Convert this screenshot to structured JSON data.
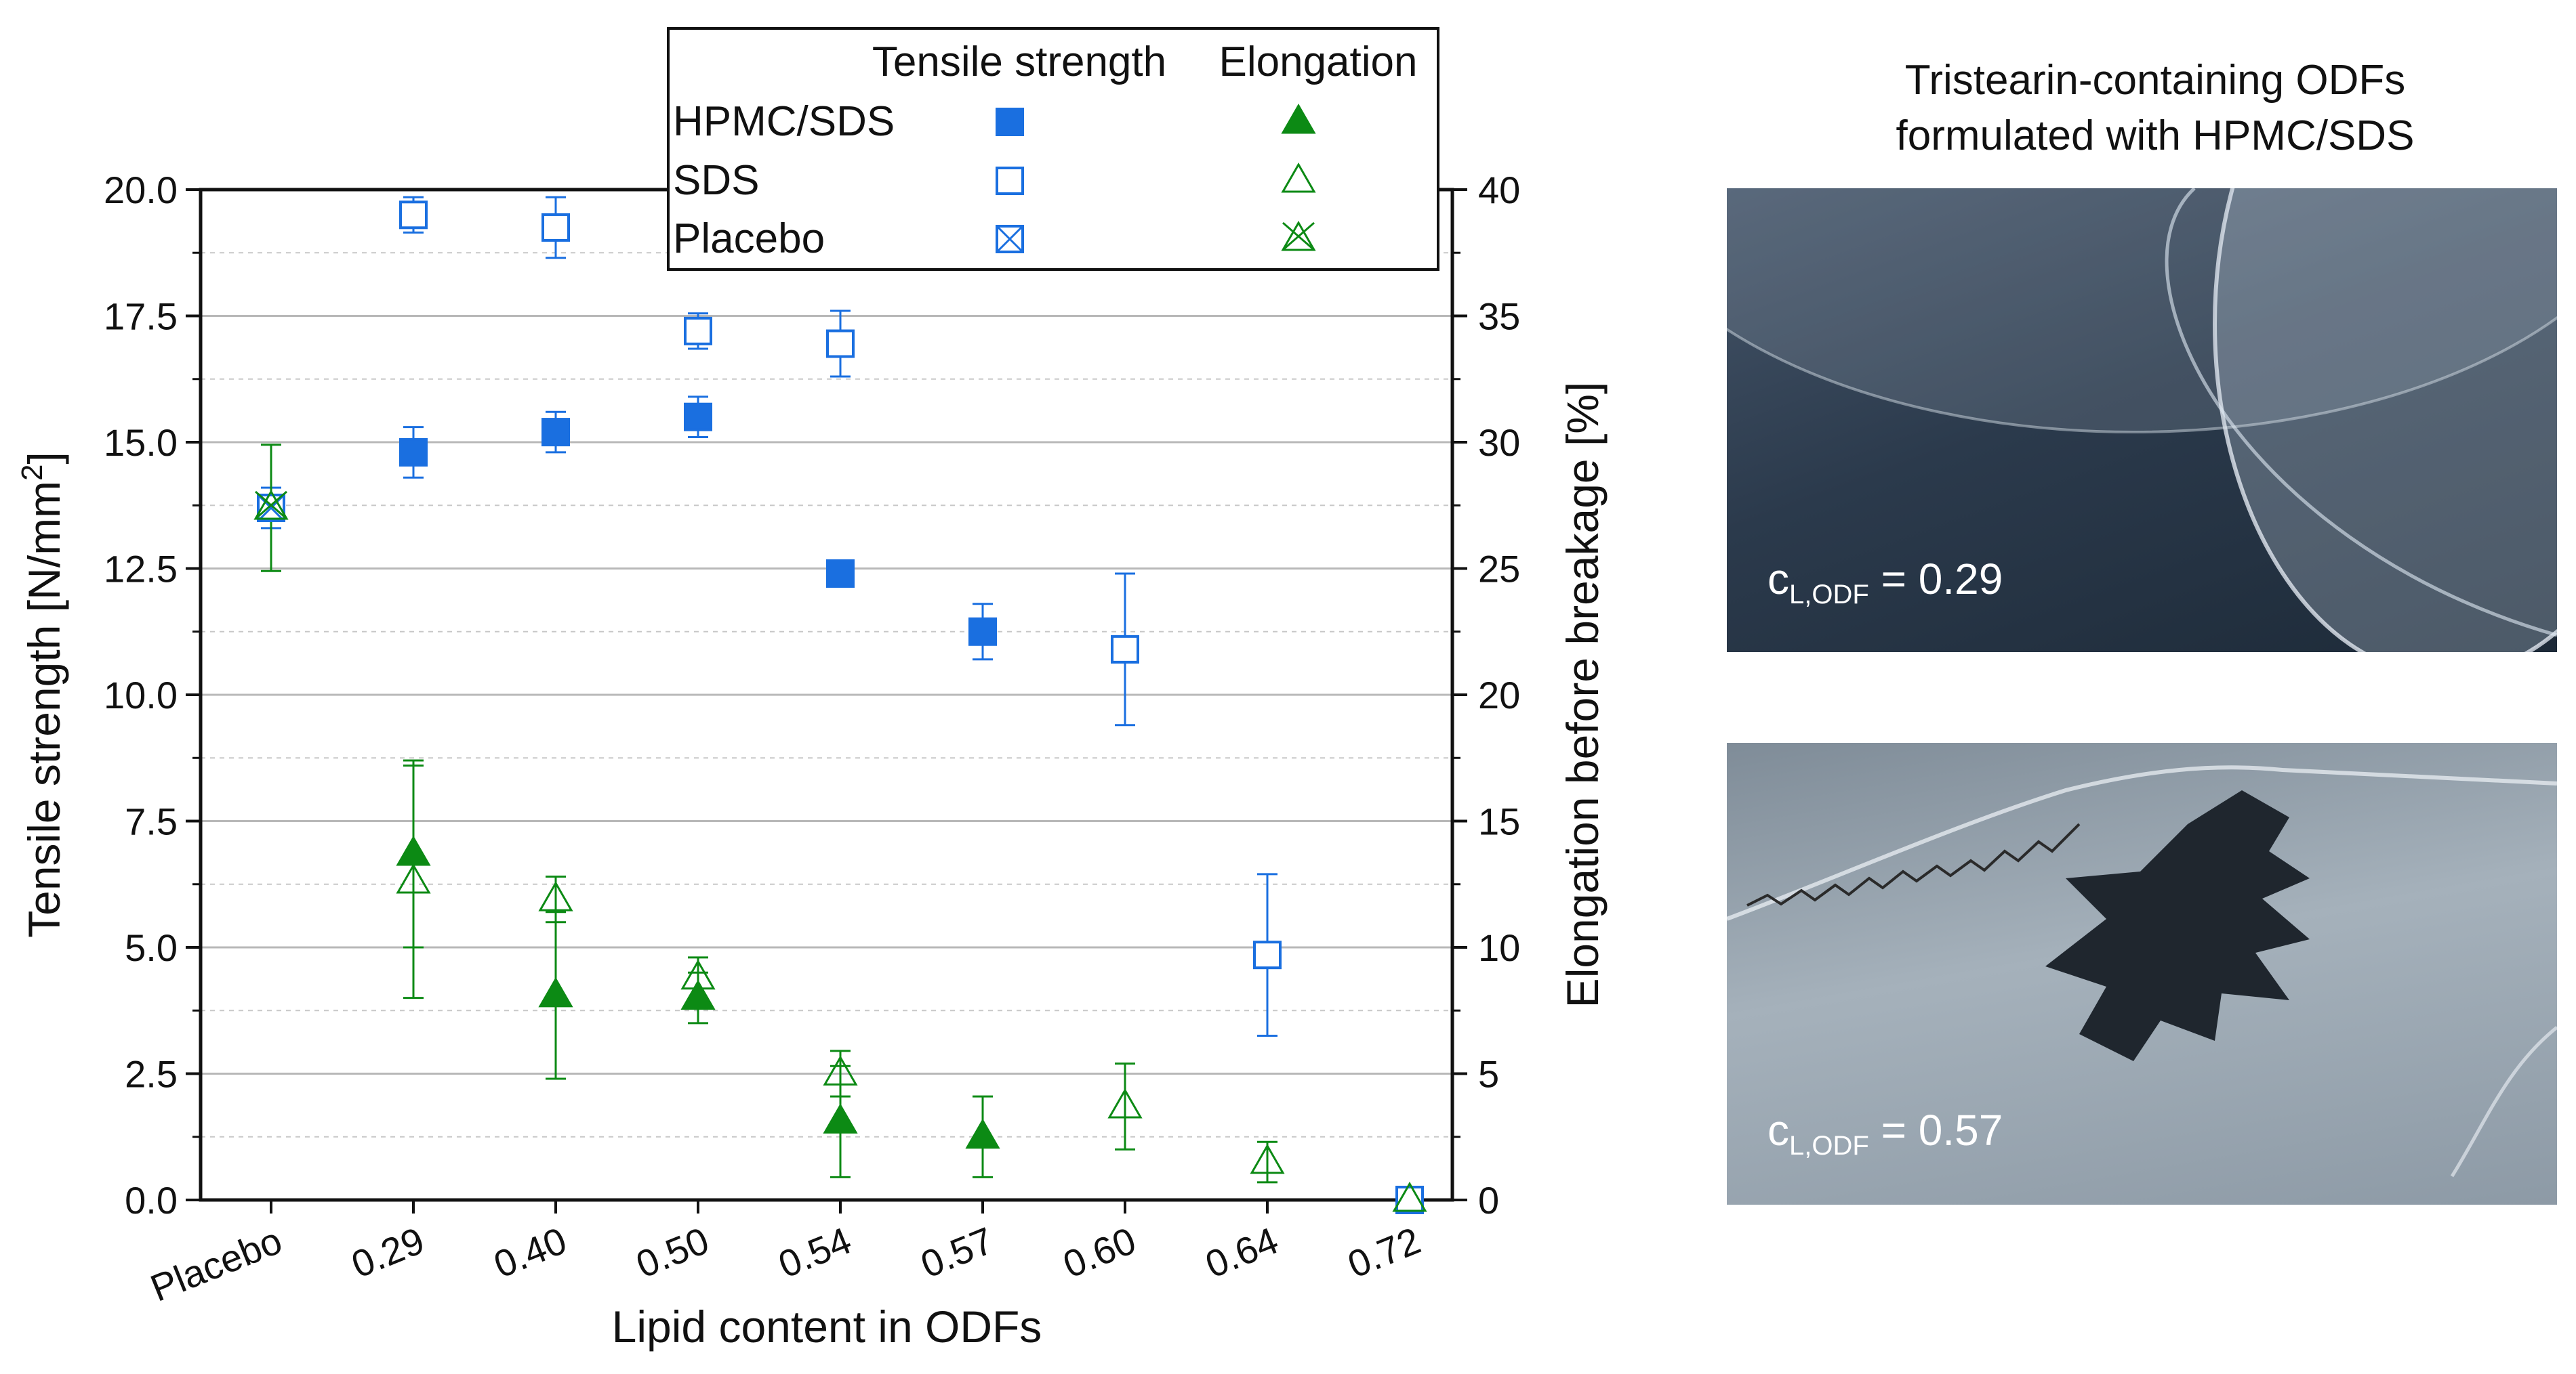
{
  "chart_data": {
    "type": "scatter",
    "categories": [
      "Placebo",
      "0.29",
      "0.40",
      "0.50",
      "0.54",
      "0.57",
      "0.60",
      "0.64",
      "0.72"
    ],
    "xlabel": "Lipid content in ODFs",
    "ylabel_left": "Tensile strength [N/mm",
    "ylabel_left_sup": "2",
    "ylabel_left_end": "]",
    "ylabel_right": "Elongation before breakage [%]",
    "ylim_left": [
      0,
      20
    ],
    "ylim_right": [
      0,
      40
    ],
    "yticks_left": [
      "0.0",
      "2.5",
      "5.0",
      "7.5",
      "10.0",
      "12.5",
      "15.0",
      "17.5",
      "20.0"
    ],
    "yticks_right": [
      "0",
      "5",
      "10",
      "15",
      "20",
      "25",
      "30",
      "35",
      "40"
    ],
    "legend": {
      "header_tensile": "Tensile strength",
      "header_elongation": "Elongation",
      "rows": [
        "HPMC/SDS",
        "SDS",
        "Placebo"
      ]
    },
    "colors": {
      "blue": "#1a6fe0",
      "green": "#0c8a14"
    },
    "series": [
      {
        "name": "HPMC/SDS tensile strength",
        "axis": "left",
        "marker": "square-filled",
        "color": "blue",
        "points": [
          {
            "cat": "0.29",
            "y": 14.8,
            "err": 0.5
          },
          {
            "cat": "0.40",
            "y": 15.2,
            "err": 0.4
          },
          {
            "cat": "0.50",
            "y": 15.5,
            "err": 0.4
          },
          {
            "cat": "0.54",
            "y": 12.4,
            "err": 0.1
          },
          {
            "cat": "0.57",
            "y": 11.25,
            "err": 0.55
          }
        ]
      },
      {
        "name": "SDS tensile strength",
        "axis": "left",
        "marker": "square-open",
        "color": "blue",
        "points": [
          {
            "cat": "0.29",
            "y": 19.5,
            "err": 0.35
          },
          {
            "cat": "0.40",
            "y": 19.25,
            "err": 0.6
          },
          {
            "cat": "0.50",
            "y": 17.2,
            "err": 0.35
          },
          {
            "cat": "0.54",
            "y": 16.95,
            "err": 0.65
          },
          {
            "cat": "0.60",
            "y": 10.9,
            "err": 1.5
          },
          {
            "cat": "0.64",
            "y": 4.85,
            "err": 1.6
          },
          {
            "cat": "0.72",
            "y": 0.0,
            "err": 0
          }
        ]
      },
      {
        "name": "Placebo tensile strength",
        "axis": "left",
        "marker": "square-cross",
        "color": "blue",
        "points": [
          {
            "cat": "Placebo",
            "y": 13.7,
            "err": 0.4
          }
        ]
      },
      {
        "name": "HPMC/SDS elongation",
        "axis": "right",
        "marker": "triangle-filled",
        "color": "green",
        "points": [
          {
            "cat": "0.29",
            "y": 13.7,
            "err": 3.7
          },
          {
            "cat": "0.40",
            "y": 8.1,
            "err": 3.3
          },
          {
            "cat": "0.50",
            "y": 8.0,
            "err": 1.0
          },
          {
            "cat": "0.54",
            "y": 3.1,
            "err": 2.2
          },
          {
            "cat": "0.57",
            "y": 2.5,
            "err": 1.6
          }
        ]
      },
      {
        "name": "SDS elongation",
        "axis": "right",
        "marker": "triangle-open",
        "color": "green",
        "points": [
          {
            "cat": "0.29",
            "y": 12.6,
            "err": 4.6
          },
          {
            "cat": "0.40",
            "y": 11.9,
            "err": 0.9
          },
          {
            "cat": "0.50",
            "y": 8.8,
            "err": 0.8
          },
          {
            "cat": "0.54",
            "y": 5.0,
            "err": 0.9
          },
          {
            "cat": "0.60",
            "y": 3.7,
            "err": 1.7
          },
          {
            "cat": "0.64",
            "y": 1.5,
            "err": 0.8
          },
          {
            "cat": "0.72",
            "y": 0.0,
            "err": 0
          }
        ]
      },
      {
        "name": "Placebo elongation",
        "axis": "right",
        "marker": "triangle-cross",
        "color": "green",
        "points": [
          {
            "cat": "Placebo",
            "y": 27.4,
            "err": 2.5
          }
        ]
      }
    ]
  },
  "photos": {
    "title_line1": "Tristearin-containing ODFs",
    "title_line2": "formulated with HPMC/SDS",
    "top_label_main": "c",
    "top_label_sub": "L,ODF",
    "top_label_value": " = 0.29",
    "bottom_label_main": "c",
    "bottom_label_sub": "L,ODF",
    "bottom_label_value": " = 0.57"
  }
}
